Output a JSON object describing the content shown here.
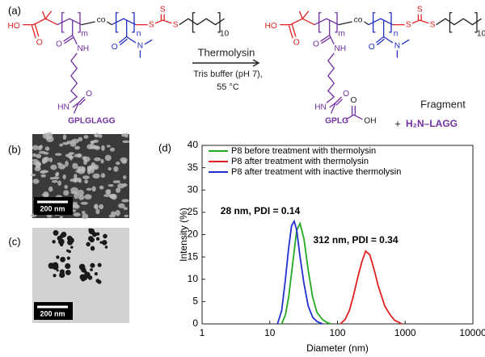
{
  "panels": {
    "a": "(a)",
    "b": "(b)",
    "c": "(c)",
    "d": "(d)"
  },
  "scheme": {
    "reactant": {
      "ho": "HO",
      "o_acid": "O",
      "m": "m",
      "co": "co",
      "n": "n",
      "o_amide1": "O",
      "nh": "NH",
      "hn": "HN",
      "o_amide2": "O",
      "peptide": "GPLGLAGG",
      "o_amide3": "O",
      "n_me": "N",
      "s1": "S",
      "s2": "S",
      "s3": "S",
      "repeat": "10"
    },
    "conditions": {
      "enzyme": "Thermolysin",
      "buffer": "Tris buffer (pH 7),",
      "temperature": "55 °C"
    },
    "product": {
      "ho": "HO",
      "o_acid": "O",
      "m": "m",
      "co": "co",
      "n": "n",
      "o_amide1": "O",
      "nh": "NH",
      "hn": "HN",
      "o_amide2": "O",
      "peptide": "GPLG",
      "o_end": "O",
      "oh": "OH",
      "o_amide3": "O",
      "n_me": "N",
      "s1": "S",
      "s2": "S",
      "s3": "S",
      "repeat": "10"
    },
    "fragment_label": "Fragment",
    "plus": "+",
    "fragment": "H₂N–LAGG"
  },
  "tem": {
    "b_scale": "200 nm",
    "c_scale": "200 nm"
  },
  "chart_data": {
    "type": "line",
    "x_label": "Diameter (nm)",
    "y_label": "Intensity (%)",
    "log_x": true,
    "xlim": [
      1,
      10000
    ],
    "xticks": [
      1,
      10,
      100,
      1000,
      10000
    ],
    "ylim": [
      0,
      40
    ],
    "yticks": [
      0,
      5,
      10,
      15,
      20,
      25,
      30,
      35,
      40
    ],
    "legend": "upper left",
    "annotations": [
      "28 nm, PDI = 0.14",
      "312 nm, PDI = 0.34"
    ],
    "series": [
      {
        "name": "P8 before treatment with thermolysin",
        "color": "#22aa22",
        "x": [
          15,
          17,
          19,
          22,
          25,
          28,
          32,
          37,
          43,
          50,
          60,
          70,
          80
        ],
        "values": [
          0,
          2,
          6,
          14,
          21,
          22.5,
          19,
          12,
          6,
          2.5,
          1,
          0.3,
          0
        ]
      },
      {
        "name": "P8 after treatment with thermolysin",
        "color": "#e02020",
        "x": [
          110,
          130,
          150,
          170,
          200,
          230,
          260,
          300,
          350,
          400,
          500,
          600,
          700,
          900
        ],
        "values": [
          0,
          1,
          3,
          6,
          10.5,
          14,
          16.3,
          15.5,
          12,
          8.5,
          4,
          2,
          0.8,
          0
        ]
      },
      {
        "name": "P8 after treatment with inactive thermolysin",
        "color": "#2030d0",
        "x": [
          13,
          15,
          17,
          19,
          21,
          23,
          25,
          28,
          32,
          37,
          43,
          50,
          60
        ],
        "values": [
          0,
          3,
          10,
          17,
          22,
          23,
          21,
          15,
          9,
          4,
          1.5,
          0.5,
          0
        ]
      }
    ]
  }
}
